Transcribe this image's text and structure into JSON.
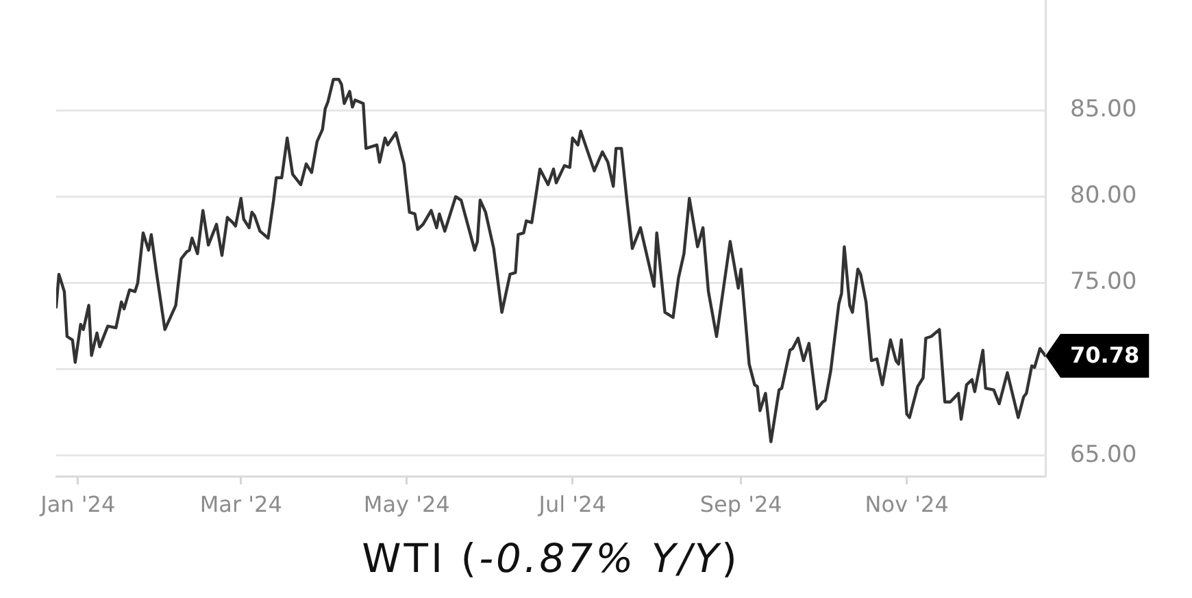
{
  "chart_data": {
    "type": "line",
    "title": "WTI (-0.87% Y/Y)",
    "x": [
      "2023-12-24",
      "2023-12-25",
      "2023-12-27",
      "2023-12-28",
      "2023-12-30",
      "2023-12-31",
      "2024-01-02",
      "2024-01-03",
      "2024-01-05",
      "2024-01-06",
      "2024-01-08",
      "2024-01-09",
      "2024-01-12",
      "2024-01-15",
      "2024-01-17",
      "2024-01-18",
      "2024-01-20",
      "2024-01-22",
      "2024-01-23",
      "2024-01-25",
      "2024-01-27",
      "2024-01-28",
      "2024-01-30",
      "2024-02-02",
      "2024-02-06",
      "2024-02-08",
      "2024-02-10",
      "2024-02-11",
      "2024-02-12",
      "2024-02-14",
      "2024-02-16",
      "2024-02-18",
      "2024-02-21",
      "2024-02-23",
      "2024-02-25",
      "2024-02-27",
      "2024-02-28",
      "2024-03-01",
      "2024-03-02",
      "2024-03-04",
      "2024-03-05",
      "2024-03-06",
      "2024-03-08",
      "2024-03-11",
      "2024-03-13",
      "2024-03-14",
      "2024-03-16",
      "2024-03-18",
      "2024-03-20",
      "2024-03-23",
      "2024-03-25",
      "2024-03-27",
      "2024-03-29",
      "2024-03-31",
      "2024-04-01",
      "2024-04-02",
      "2024-04-04",
      "2024-04-06",
      "2024-04-07",
      "2024-04-08",
      "2024-04-10",
      "2024-04-11",
      "2024-04-12",
      "2024-04-15",
      "2024-04-16",
      "2024-04-20",
      "2024-04-21",
      "2024-04-23",
      "2024-04-24",
      "2024-04-27",
      "2024-04-30",
      "2024-05-02",
      "2024-05-04",
      "2024-05-05",
      "2024-05-07",
      "2024-05-10",
      "2024-05-12",
      "2024-05-13",
      "2024-05-15",
      "2024-05-19",
      "2024-05-21",
      "2024-05-26",
      "2024-05-27",
      "2024-05-28",
      "2024-05-30",
      "2024-06-02",
      "2024-06-05",
      "2024-06-08",
      "2024-06-10",
      "2024-06-11",
      "2024-06-13",
      "2024-06-14",
      "2024-06-16",
      "2024-06-19",
      "2024-06-22",
      "2024-06-24",
      "2024-06-25",
      "2024-06-28",
      "2024-06-30",
      "2024-07-01",
      "2024-07-03",
      "2024-07-04",
      "2024-07-09",
      "2024-07-12",
      "2024-07-14",
      "2024-07-16",
      "2024-07-17",
      "2024-07-19",
      "2024-07-21",
      "2024-07-23",
      "2024-07-26",
      "2024-07-31",
      "2024-08-01",
      "2024-08-04",
      "2024-08-07",
      "2024-08-09",
      "2024-08-11",
      "2024-08-13",
      "2024-08-16",
      "2024-08-18",
      "2024-08-20",
      "2024-08-23",
      "2024-08-28",
      "2024-08-31",
      "2024-09-01",
      "2024-09-04",
      "2024-09-06",
      "2024-09-07",
      "2024-09-08",
      "2024-09-10",
      "2024-09-12",
      "2024-09-15",
      "2024-09-16",
      "2024-09-19",
      "2024-09-20",
      "2024-09-22",
      "2024-09-24",
      "2024-09-26",
      "2024-09-29",
      "2024-10-01",
      "2024-10-02",
      "2024-10-04",
      "2024-10-07",
      "2024-10-08",
      "2024-10-09",
      "2024-10-11",
      "2024-10-12",
      "2024-10-14",
      "2024-10-15",
      "2024-10-17",
      "2024-10-19",
      "2024-10-21",
      "2024-10-23",
      "2024-10-26",
      "2024-10-28",
      "2024-10-29",
      "2024-10-30",
      "2024-11-01",
      "2024-11-02",
      "2024-11-05",
      "2024-11-07",
      "2024-11-08",
      "2024-11-10",
      "2024-11-13",
      "2024-11-15",
      "2024-11-17",
      "2024-11-20",
      "2024-11-21",
      "2024-11-23",
      "2024-11-25",
      "2024-11-26",
      "2024-11-29",
      "2024-11-30",
      "2024-12-03",
      "2024-12-05",
      "2024-12-08",
      "2024-12-10",
      "2024-12-12",
      "2024-12-14",
      "2024-12-15",
      "2024-12-17",
      "2024-12-18",
      "2024-12-20",
      "2024-12-22"
    ],
    "series": [
      {
        "color": "#333333",
        "values": [
          73.6,
          75.5,
          74.5,
          71.9,
          71.7,
          70.4,
          72.6,
          72.3,
          73.7,
          70.8,
          72.1,
          71.3,
          72.5,
          72.4,
          73.9,
          73.5,
          74.6,
          74.5,
          75.0,
          77.9,
          76.9,
          77.8,
          75.5,
          72.3,
          73.7,
          76.4,
          76.8,
          76.9,
          77.6,
          76.7,
          79.2,
          77.2,
          78.4,
          76.6,
          78.8,
          78.5,
          78.3,
          79.9,
          78.7,
          78.2,
          79.1,
          78.9,
          78.0,
          77.6,
          79.8,
          81.1,
          81.1,
          83.4,
          81.3,
          80.7,
          81.9,
          81.4,
          83.2,
          83.9,
          85.1,
          85.5,
          86.8,
          86.8,
          86.5,
          85.4,
          86.1,
          85.2,
          85.6,
          85.4,
          82.8,
          83.0,
          82.0,
          83.4,
          83.0,
          83.7,
          81.9,
          79.1,
          79.0,
          78.1,
          78.4,
          79.2,
          78.2,
          79.0,
          78.0,
          80.0,
          79.8,
          76.9,
          77.4,
          79.8,
          79.1,
          77.0,
          73.3,
          75.5,
          75.6,
          77.8,
          77.9,
          78.6,
          78.5,
          81.6,
          80.7,
          81.6,
          80.8,
          81.8,
          81.7,
          83.4,
          83.0,
          83.8,
          81.5,
          82.6,
          82.0,
          80.6,
          82.8,
          82.8,
          79.8,
          77.0,
          78.2,
          74.8,
          77.9,
          73.3,
          73.0,
          75.3,
          76.7,
          79.9,
          77.1,
          78.2,
          74.5,
          71.9,
          77.4,
          74.7,
          75.8,
          70.3,
          69.1,
          69.0,
          67.6,
          68.6,
          65.8,
          68.8,
          68.9,
          71.1,
          71.2,
          71.8,
          70.5,
          71.5,
          67.7,
          68.1,
          68.2,
          69.9,
          73.8,
          74.4,
          77.1,
          73.7,
          73.3,
          75.8,
          75.5,
          73.9,
          70.5,
          70.6,
          69.1,
          71.7,
          70.5,
          70.3,
          71.7,
          67.4,
          67.2,
          69.0,
          69.5,
          71.8,
          71.9,
          72.3,
          68.1,
          68.1,
          68.6,
          67.1,
          69.1,
          69.4,
          68.7,
          71.1,
          68.9,
          68.8,
          68.0,
          69.8,
          68.5,
          67.2,
          68.4,
          68.6,
          70.2,
          70.1,
          71.2,
          70.78
        ]
      }
    ],
    "xlim": [
      "2023-12-24",
      "2024-12-22"
    ],
    "xticks": [
      {
        "value": "2024-01-01",
        "label": "Jan '24"
      },
      {
        "value": "2024-03-01",
        "label": "Mar '24"
      },
      {
        "value": "2024-05-01",
        "label": "May '24"
      },
      {
        "value": "2024-07-01",
        "label": "Jul '24"
      },
      {
        "value": "2024-09-01",
        "label": "Sep '24"
      },
      {
        "value": "2024-11-01",
        "label": "Nov '24"
      }
    ],
    "ylim": [
      63.8,
      91.4
    ],
    "yticks": [
      {
        "value": 65,
        "label": "65.00"
      },
      {
        "value": 70,
        "label": null
      },
      {
        "value": 75,
        "label": "75.00"
      },
      {
        "value": 80,
        "label": "80.00"
      },
      {
        "value": 85,
        "label": "85.00"
      }
    ],
    "grid": "y",
    "marker": "none",
    "line_style": "solid",
    "annotations": [
      {
        "text": "70.78",
        "x": "2024-12-22",
        "y": 70.78
      }
    ]
  }
}
